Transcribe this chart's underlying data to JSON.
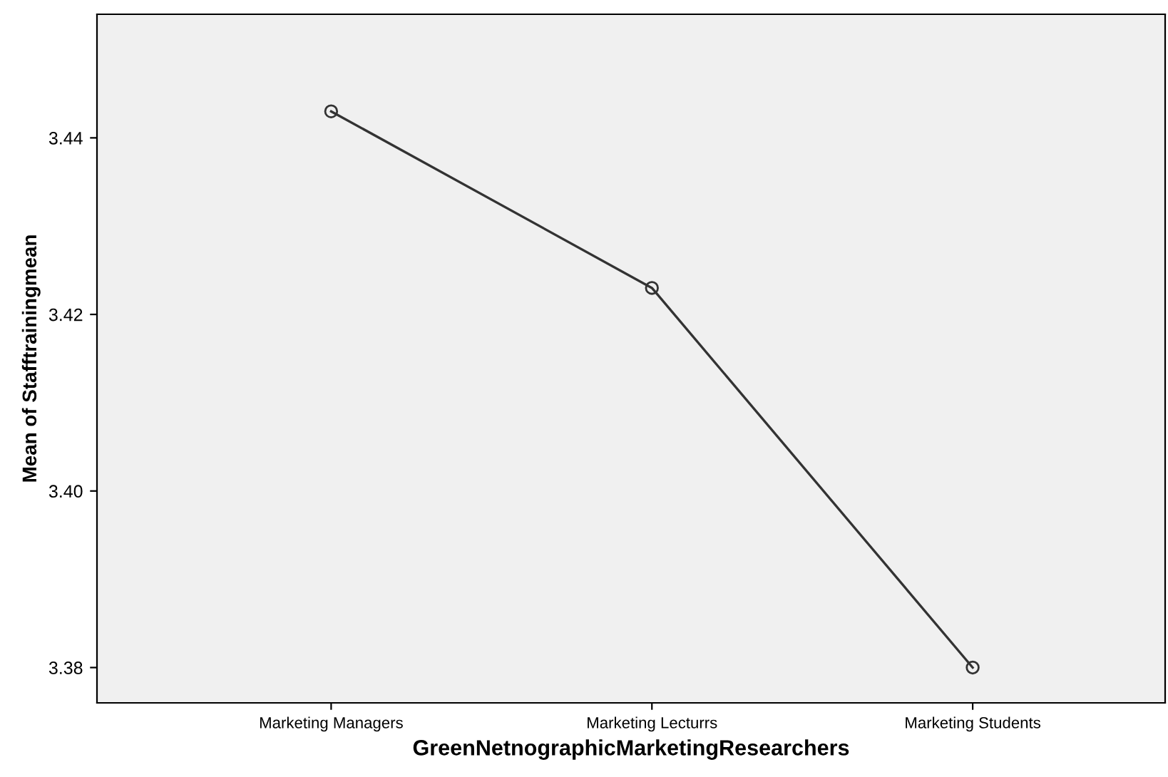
{
  "chart_data": {
    "type": "line",
    "xlabel": "GreenNetnographicMarketingResearchers",
    "ylabel": "Mean of Stafftrainingmean",
    "categories": [
      "Marketing Managers",
      "Marketing Lecturrs",
      "Marketing Students"
    ],
    "series": [
      {
        "color": "#333333",
        "values": [
          3.443,
          3.423,
          3.38
        ]
      }
    ],
    "ylim": [
      3.376,
      3.454
    ],
    "yticks": [
      {
        "value": 3.38,
        "label": "3.38"
      },
      {
        "value": 3.4,
        "label": "3.40"
      },
      {
        "value": 3.42,
        "label": "3.42"
      },
      {
        "value": 3.44,
        "label": "3.44"
      }
    ],
    "marker": "circle",
    "line_style": "solid",
    "grid": false,
    "legend": false
  }
}
